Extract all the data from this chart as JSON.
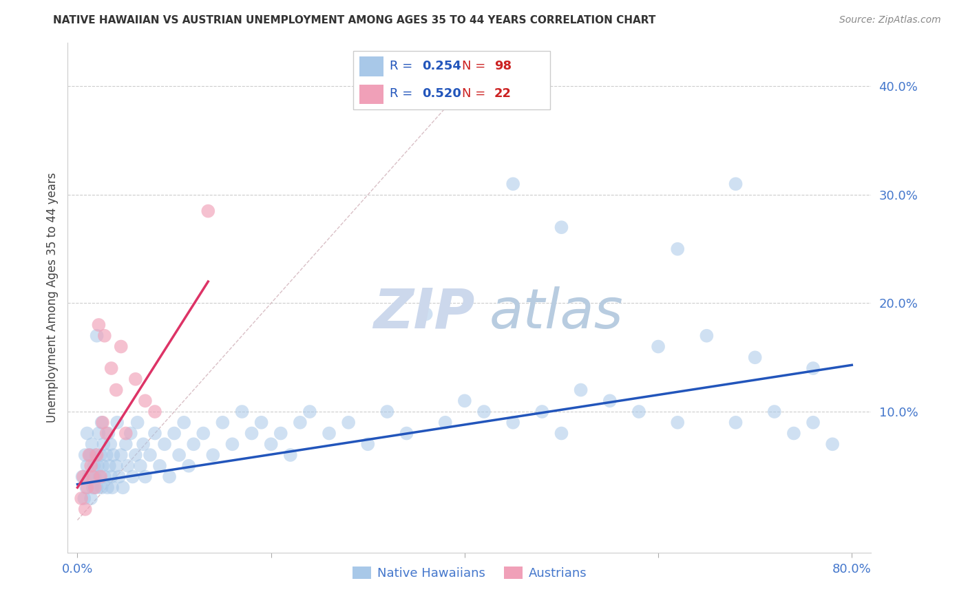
{
  "title": "NATIVE HAWAIIAN VS AUSTRIAN UNEMPLOYMENT AMONG AGES 35 TO 44 YEARS CORRELATION CHART",
  "source": "Source: ZipAtlas.com",
  "ylabel": "Unemployment Among Ages 35 to 44 years",
  "xlim": [
    -0.01,
    0.82
  ],
  "ylim": [
    -0.03,
    0.44
  ],
  "x_ticks": [
    0.0,
    0.2,
    0.4,
    0.6,
    0.8
  ],
  "x_tick_labels": [
    "0.0%",
    "",
    "",
    "",
    "80.0%"
  ],
  "y_ticks": [
    0.0,
    0.1,
    0.2,
    0.3,
    0.4
  ],
  "y_tick_labels": [
    "",
    "10.0%",
    "20.0%",
    "30.0%",
    "40.0%"
  ],
  "R_nh": "0.254",
  "N_nh": "98",
  "R_au": "0.520",
  "N_au": "22",
  "blue_scatter": "#a8c8e8",
  "pink_scatter": "#f0a0b8",
  "blue_line": "#2255bb",
  "pink_line": "#dd3366",
  "diagonal": "#d0b0b8",
  "tick_color": "#4477cc",
  "grid_color": "#cccccc",
  "watermark_zip": "ZIP",
  "watermark_atlas": "atlas",
  "watermark_color_zip": "#c8d8ec",
  "watermark_color_atlas": "#c0cce0",
  "native_hawaiian_x": [
    0.005,
    0.007,
    0.008,
    0.009,
    0.01,
    0.01,
    0.012,
    0.013,
    0.014,
    0.015,
    0.016,
    0.017,
    0.018,
    0.019,
    0.02,
    0.02,
    0.021,
    0.022,
    0.023,
    0.024,
    0.025,
    0.025,
    0.026,
    0.027,
    0.028,
    0.03,
    0.031,
    0.032,
    0.033,
    0.034,
    0.035,
    0.036,
    0.037,
    0.04,
    0.041,
    0.043,
    0.045,
    0.047,
    0.05,
    0.052,
    0.055,
    0.057,
    0.06,
    0.062,
    0.065,
    0.068,
    0.07,
    0.075,
    0.08,
    0.085,
    0.09,
    0.095,
    0.1,
    0.105,
    0.11,
    0.115,
    0.12,
    0.13,
    0.14,
    0.15,
    0.16,
    0.17,
    0.18,
    0.19,
    0.2,
    0.21,
    0.22,
    0.23,
    0.24,
    0.26,
    0.28,
    0.3,
    0.32,
    0.34,
    0.36,
    0.38,
    0.4,
    0.42,
    0.45,
    0.48,
    0.5,
    0.52,
    0.55,
    0.58,
    0.6,
    0.62,
    0.65,
    0.68,
    0.7,
    0.72,
    0.74,
    0.76,
    0.78,
    0.5,
    0.62,
    0.68,
    0.45,
    0.76
  ],
  "native_hawaiian_y": [
    0.04,
    0.02,
    0.06,
    0.03,
    0.05,
    0.08,
    0.04,
    0.06,
    0.02,
    0.07,
    0.03,
    0.05,
    0.04,
    0.06,
    0.03,
    0.17,
    0.05,
    0.08,
    0.04,
    0.06,
    0.03,
    0.09,
    0.05,
    0.07,
    0.04,
    0.06,
    0.03,
    0.08,
    0.05,
    0.07,
    0.04,
    0.03,
    0.06,
    0.05,
    0.09,
    0.04,
    0.06,
    0.03,
    0.07,
    0.05,
    0.08,
    0.04,
    0.06,
    0.09,
    0.05,
    0.07,
    0.04,
    0.06,
    0.08,
    0.05,
    0.07,
    0.04,
    0.08,
    0.06,
    0.09,
    0.05,
    0.07,
    0.08,
    0.06,
    0.09,
    0.07,
    0.1,
    0.08,
    0.09,
    0.07,
    0.08,
    0.06,
    0.09,
    0.1,
    0.08,
    0.09,
    0.07,
    0.1,
    0.08,
    0.19,
    0.09,
    0.11,
    0.1,
    0.09,
    0.1,
    0.08,
    0.12,
    0.11,
    0.1,
    0.16,
    0.25,
    0.17,
    0.09,
    0.15,
    0.1,
    0.08,
    0.09,
    0.07,
    0.27,
    0.09,
    0.31,
    0.31,
    0.14
  ],
  "austrian_x": [
    0.004,
    0.006,
    0.008,
    0.01,
    0.012,
    0.014,
    0.016,
    0.018,
    0.02,
    0.022,
    0.024,
    0.026,
    0.028,
    0.03,
    0.035,
    0.04,
    0.045,
    0.05,
    0.06,
    0.07,
    0.08,
    0.135
  ],
  "austrian_y": [
    0.02,
    0.04,
    0.01,
    0.03,
    0.06,
    0.05,
    0.04,
    0.03,
    0.06,
    0.18,
    0.04,
    0.09,
    0.17,
    0.08,
    0.14,
    0.12,
    0.16,
    0.08,
    0.13,
    0.11,
    0.1,
    0.285
  ],
  "blue_line_x0": 0.0,
  "blue_line_y0": 0.033,
  "blue_line_x1": 0.8,
  "blue_line_y1": 0.143,
  "pink_line_x0": 0.0,
  "pink_line_y0": 0.03,
  "pink_line_x1": 0.135,
  "pink_line_y1": 0.22
}
